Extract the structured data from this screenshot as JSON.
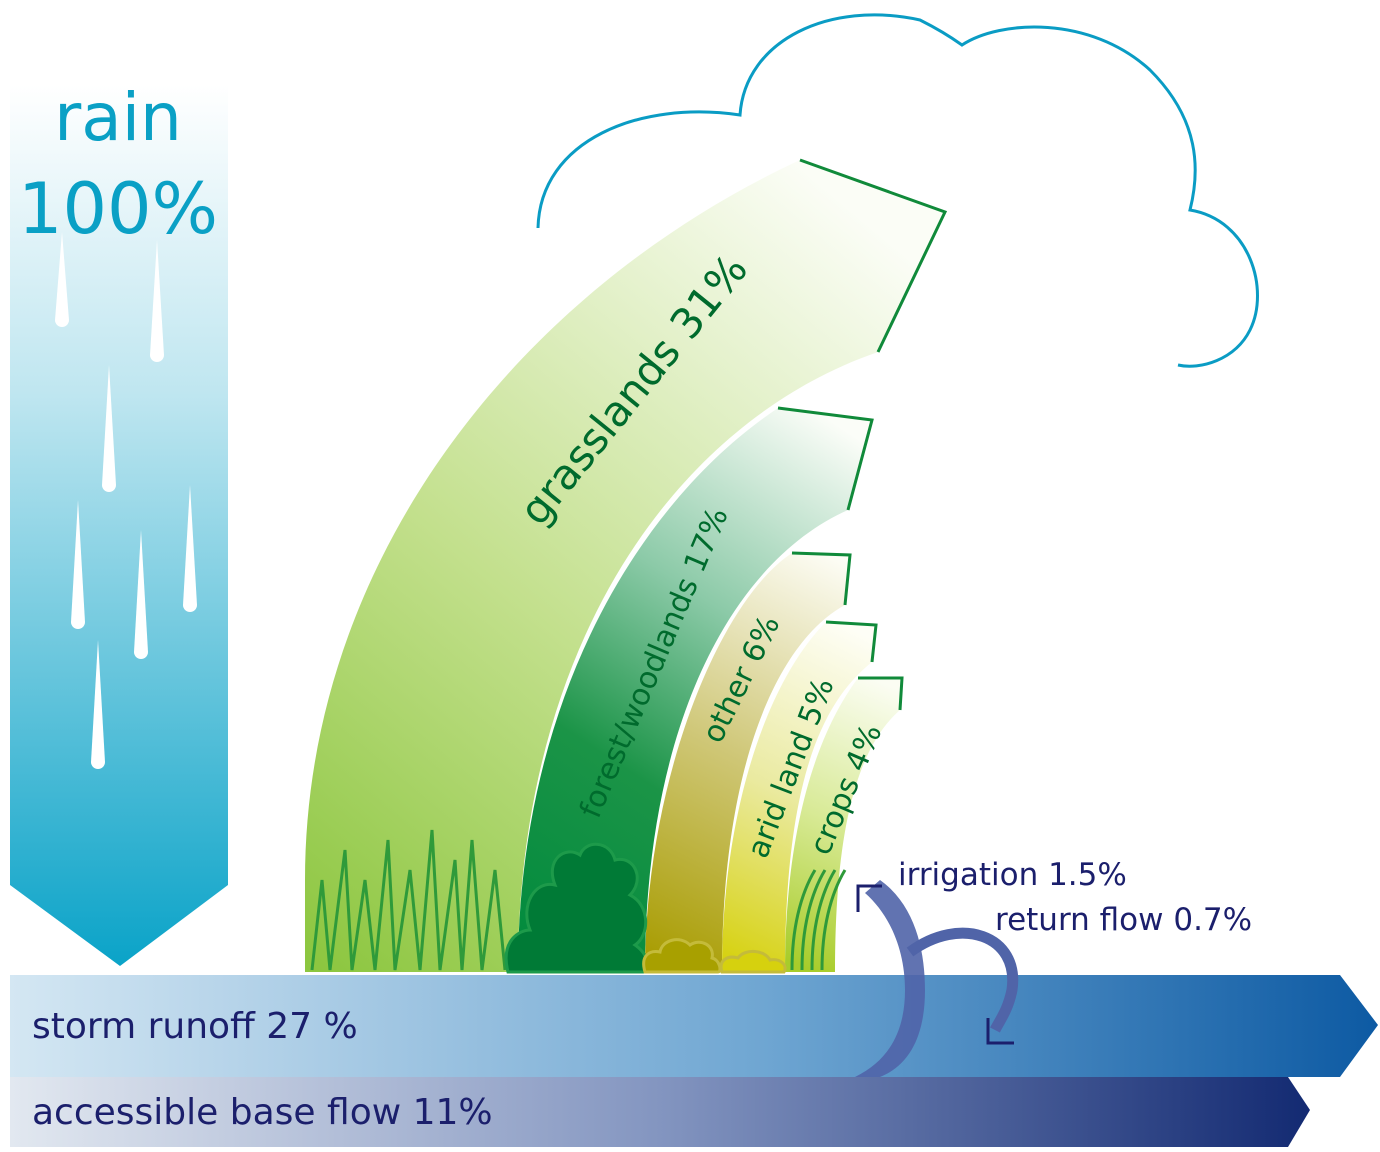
{
  "rain": {
    "word": "rain",
    "percent": "100%"
  },
  "bands": [
    {
      "label": "grasslands 31%"
    },
    {
      "label": "forest/woodlands 17%"
    },
    {
      "label": "other 6%"
    },
    {
      "label": "arid land 5%"
    },
    {
      "label": "crops 4%"
    }
  ],
  "flows": {
    "irrigation": "irrigation 1.5%",
    "return_flow": "return flow 0.7%",
    "storm_runoff": "storm runoff 27 %",
    "base_flow": "accessible base flow 11%"
  },
  "colors": {
    "rain_top": "#ffffff",
    "rain_bottom": "#0aa3c8",
    "rain_text": "#0aa0c5",
    "cloud_stroke": "#0a9cc4",
    "grassland": "#8cc63f",
    "forest": "#008a3d",
    "other": "#a8a000",
    "arid": "#d6d10e",
    "crops": "#b2d235",
    "label_green": "#006b2d",
    "bracket_green": "#108a3a",
    "storm_left": "#d2e6f2",
    "storm_right": "#0e5aa3",
    "base_left": "#dde4ee",
    "base_right": "#142a72",
    "flow_text": "#1b1f6c",
    "irrigation_arrow": "#5064a8"
  }
}
